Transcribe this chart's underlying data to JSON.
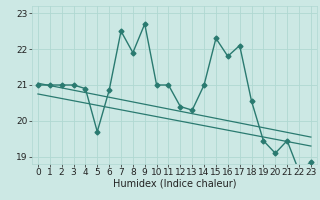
{
  "title": "",
  "xlabel": "Humidex (Indice chaleur)",
  "bg_color": "#cce8e4",
  "line_color": "#2a7a70",
  "grid_color": "#b0d8d2",
  "x_data": [
    0,
    1,
    2,
    3,
    4,
    5,
    6,
    7,
    8,
    9,
    10,
    11,
    12,
    13,
    14,
    15,
    16,
    17,
    18,
    19,
    20,
    21,
    22,
    23
  ],
  "y_data": [
    21.0,
    21.0,
    21.0,
    21.0,
    20.9,
    19.7,
    20.85,
    22.5,
    21.9,
    22.7,
    21.0,
    21.0,
    20.4,
    20.3,
    21.0,
    22.3,
    21.8,
    22.1,
    20.55,
    19.45,
    19.1,
    19.45,
    18.6,
    18.85
  ],
  "trend1_x": [
    0,
    23
  ],
  "trend1_y": [
    21.05,
    19.55
  ],
  "trend2_x": [
    0,
    23
  ],
  "trend2_y": [
    20.75,
    19.3
  ],
  "xlim": [
    -0.5,
    23.5
  ],
  "ylim": [
    18.8,
    23.2
  ],
  "yticks": [
    19,
    20,
    21,
    22,
    23
  ],
  "xticks": [
    0,
    1,
    2,
    3,
    4,
    5,
    6,
    7,
    8,
    9,
    10,
    11,
    12,
    13,
    14,
    15,
    16,
    17,
    18,
    19,
    20,
    21,
    22,
    23
  ],
  "xtick_labels": [
    "0",
    "1",
    "2",
    "3",
    "4",
    "5",
    "6",
    "7",
    "8",
    "9",
    "10",
    "11",
    "12",
    "13",
    "14",
    "15",
    "16",
    "17",
    "18",
    "19",
    "20",
    "21",
    "22",
    "23"
  ],
  "marker": "D",
  "marker_size": 2.5,
  "line_width": 1.0,
  "font_size": 6.5,
  "xlabel_fontsize": 7
}
